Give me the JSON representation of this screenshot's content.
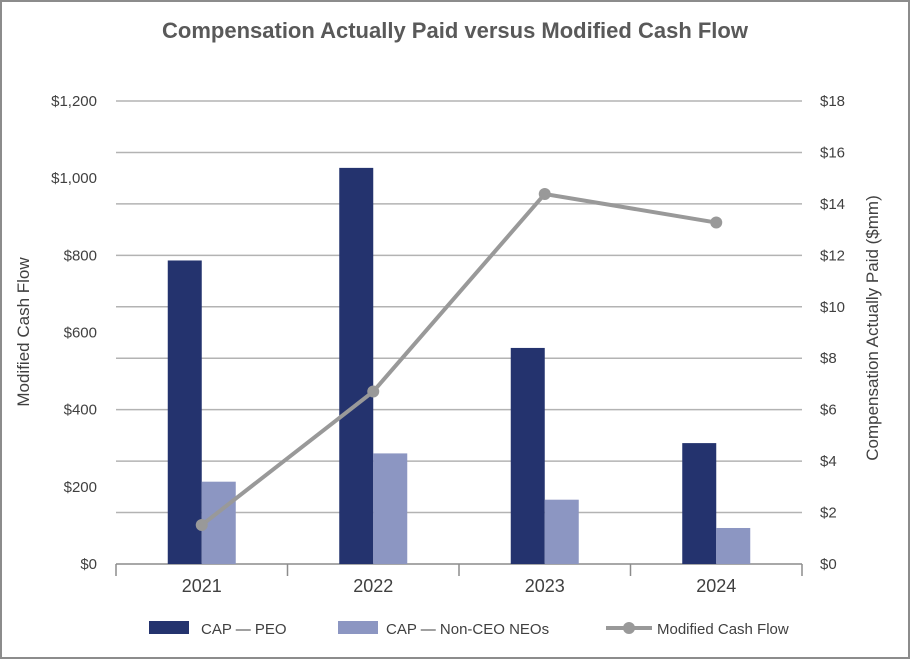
{
  "chart_data": {
    "type": "bar",
    "title": "Compensation Actually Paid versus Modified Cash Flow",
    "categories": [
      "2021",
      "2022",
      "2023",
      "2024"
    ],
    "y_left": {
      "label": "Modified Cash Flow",
      "range": [
        0,
        1200
      ],
      "ticks": [
        "$0",
        "$200",
        "$400",
        "$600",
        "$800",
        "$1,000",
        "$1,200"
      ],
      "tick_values": [
        0,
        200,
        400,
        600,
        800,
        1000,
        1200
      ]
    },
    "y_right": {
      "label": "Compensation Actually Paid ($mm)",
      "range": [
        0,
        18
      ],
      "ticks": [
        "$0",
        "$2",
        "$4",
        "$6",
        "$8",
        "$10",
        "$12",
        "$14",
        "$16",
        "$18"
      ],
      "tick_values": [
        0,
        2,
        4,
        6,
        8,
        10,
        12,
        14,
        16,
        18
      ]
    },
    "grid": true,
    "legend_position": "bottom",
    "series": [
      {
        "name": "CAP — PEO",
        "type": "bar",
        "axis": "right",
        "color": "#24336e",
        "values": [
          11.8,
          15.4,
          8.4,
          4.7
        ]
      },
      {
        "name": "CAP — Non-CEO NEOs",
        "type": "bar",
        "axis": "right",
        "color": "#8c96c2",
        "values": [
          3.2,
          4.3,
          2.5,
          1.4
        ]
      },
      {
        "name": "Modified Cash Flow",
        "type": "line",
        "axis": "left",
        "color": "#999999",
        "values": [
          101,
          447,
          959,
          885
        ]
      }
    ]
  }
}
